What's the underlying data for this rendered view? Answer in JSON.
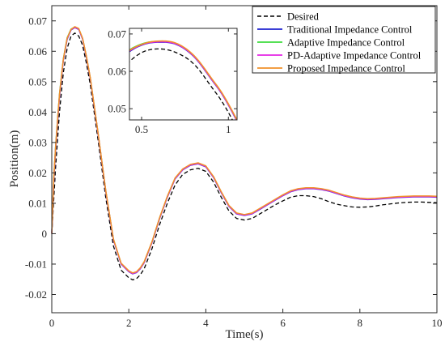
{
  "chart_data": {
    "type": "line",
    "xlabel": "Time(s)",
    "ylabel": "Position(m)",
    "xlim": [
      0,
      10
    ],
    "ylim": [
      -0.026,
      0.075
    ],
    "xticks": [
      "0",
      "2",
      "4",
      "6",
      "8",
      "10"
    ],
    "yticks": [
      "-0.02",
      "-0.01",
      "0",
      "0.01",
      "0.02",
      "0.03",
      "0.04",
      "0.05",
      "0.06",
      "0.07"
    ],
    "grid": false,
    "legend_position": "top-right",
    "series": [
      {
        "name": "Desired",
        "color": "#000000",
        "style": "dashed",
        "x": [
          0,
          0.1,
          0.2,
          0.3,
          0.4,
          0.5,
          0.6,
          0.7,
          0.8,
          0.9,
          1.0,
          1.2,
          1.4,
          1.6,
          1.8,
          2.0,
          2.1,
          2.2,
          2.3,
          2.4,
          2.6,
          2.8,
          3.0,
          3.2,
          3.4,
          3.6,
          3.8,
          4.0,
          4.2,
          4.4,
          4.6,
          4.8,
          5.0,
          5.2,
          5.4,
          5.6,
          5.8,
          6.0,
          6.2,
          6.4,
          6.6,
          6.8,
          7.0,
          7.2,
          7.4,
          7.6,
          7.8,
          8.0,
          8.2,
          8.4,
          8.6,
          8.8,
          9.0,
          9.2,
          9.4,
          9.6,
          9.8,
          10.0
        ],
        "y": [
          0.0,
          0.022,
          0.04,
          0.053,
          0.061,
          0.065,
          0.066,
          0.065,
          0.062,
          0.056,
          0.049,
          0.031,
          0.012,
          -0.004,
          -0.012,
          -0.0145,
          -0.0152,
          -0.0148,
          -0.0135,
          -0.0115,
          -0.005,
          0.003,
          0.01,
          0.016,
          0.0195,
          0.021,
          0.0215,
          0.0205,
          0.017,
          0.012,
          0.0075,
          0.005,
          0.0045,
          0.005,
          0.0065,
          0.008,
          0.0095,
          0.0108,
          0.012,
          0.0125,
          0.0125,
          0.0122,
          0.0115,
          0.0105,
          0.0097,
          0.0092,
          0.0088,
          0.0087,
          0.0088,
          0.0091,
          0.0095,
          0.0098,
          0.0101,
          0.0103,
          0.0104,
          0.0104,
          0.0103,
          0.0102
        ]
      },
      {
        "name": "Traditional Impedance Control",
        "color": "#1f23d1",
        "style": "solid",
        "x": [
          0,
          0.05,
          0.1,
          0.2,
          0.3,
          0.4,
          0.5,
          0.6,
          0.7,
          0.8,
          0.9,
          1.0,
          1.2,
          1.4,
          1.6,
          1.8,
          2.0,
          2.1,
          2.2,
          2.3,
          2.4,
          2.6,
          2.8,
          3.0,
          3.2,
          3.4,
          3.6,
          3.8,
          4.0,
          4.2,
          4.4,
          4.6,
          4.8,
          5.0,
          5.2,
          5.4,
          5.6,
          5.8,
          6.0,
          6.2,
          6.4,
          6.6,
          6.8,
          7.0,
          7.2,
          7.4,
          7.6,
          7.8,
          8.0,
          8.2,
          8.4,
          8.6,
          8.8,
          9.0,
          9.2,
          9.4,
          9.6,
          9.8,
          10.0
        ],
        "y": [
          0.0,
          0.017,
          0.028,
          0.045,
          0.057,
          0.064,
          0.067,
          0.0678,
          0.0672,
          0.064,
          0.058,
          0.051,
          0.033,
          0.014,
          -0.002,
          -0.01,
          -0.0125,
          -0.0132,
          -0.0128,
          -0.0115,
          -0.0095,
          -0.003,
          0.005,
          0.012,
          0.018,
          0.021,
          0.0225,
          0.023,
          0.022,
          0.0185,
          0.0135,
          0.009,
          0.0065,
          0.006,
          0.0065,
          0.008,
          0.0095,
          0.011,
          0.0125,
          0.0138,
          0.0145,
          0.0148,
          0.0148,
          0.0145,
          0.014,
          0.0132,
          0.0124,
          0.0118,
          0.0114,
          0.0112,
          0.0113,
          0.0115,
          0.0117,
          0.0119,
          0.012,
          0.0121,
          0.0121,
          0.0121,
          0.012
        ]
      },
      {
        "name": "Adaptive Impedance Control",
        "color": "#3ddc3d",
        "style": "solid",
        "x": [
          0,
          0.05,
          0.1,
          0.2,
          0.3,
          0.4,
          0.5,
          0.6,
          0.7,
          0.8,
          0.9,
          1.0,
          1.2,
          1.4,
          1.6,
          1.8,
          2.0,
          2.1,
          2.2,
          2.3,
          2.4,
          2.6,
          2.8,
          3.0,
          3.2,
          3.4,
          3.6,
          3.8,
          4.0,
          4.2,
          4.4,
          4.6,
          4.8,
          5.0,
          5.2,
          5.4,
          5.6,
          5.8,
          6.0,
          6.2,
          6.4,
          6.6,
          6.8,
          7.0,
          7.2,
          7.4,
          7.6,
          7.8,
          8.0,
          8.2,
          8.4,
          8.6,
          8.8,
          9.0,
          9.2,
          9.4,
          9.6,
          9.8,
          10.0
        ],
        "y": [
          0.0,
          0.018,
          0.029,
          0.046,
          0.0575,
          0.0645,
          0.0673,
          0.068,
          0.0674,
          0.0642,
          0.0582,
          0.0512,
          0.0332,
          0.0142,
          -0.0018,
          -0.0098,
          -0.0123,
          -0.013,
          -0.0126,
          -0.0113,
          -0.0093,
          -0.0028,
          0.0052,
          0.0122,
          0.0182,
          0.0212,
          0.0227,
          0.0232,
          0.0222,
          0.0187,
          0.0137,
          0.0092,
          0.0067,
          0.0062,
          0.0067,
          0.0082,
          0.0097,
          0.0112,
          0.0127,
          0.014,
          0.0147,
          0.015,
          0.015,
          0.0147,
          0.0142,
          0.0134,
          0.0126,
          0.012,
          0.0116,
          0.0114,
          0.0115,
          0.0117,
          0.0119,
          0.0121,
          0.0122,
          0.0123,
          0.0123,
          0.0123,
          0.0122
        ]
      },
      {
        "name": "PD-Adaptive Impedance Control",
        "color": "#e524e5",
        "style": "solid",
        "x": [
          0,
          0.05,
          0.1,
          0.2,
          0.3,
          0.4,
          0.5,
          0.6,
          0.7,
          0.8,
          0.9,
          1.0,
          1.2,
          1.4,
          1.6,
          1.8,
          2.0,
          2.1,
          2.2,
          2.3,
          2.4,
          2.6,
          2.8,
          3.0,
          3.2,
          3.4,
          3.6,
          3.8,
          4.0,
          4.2,
          4.4,
          4.6,
          4.8,
          5.0,
          5.2,
          5.4,
          5.6,
          5.8,
          6.0,
          6.2,
          6.4,
          6.6,
          6.8,
          7.0,
          7.2,
          7.4,
          7.6,
          7.8,
          8.0,
          8.2,
          8.4,
          8.6,
          8.8,
          9.0,
          9.2,
          9.4,
          9.6,
          9.8,
          10.0
        ],
        "y": [
          0.0,
          0.0175,
          0.0285,
          0.0455,
          0.0572,
          0.0642,
          0.0671,
          0.0679,
          0.0673,
          0.0641,
          0.0581,
          0.0511,
          0.0331,
          0.0141,
          -0.0019,
          -0.0099,
          -0.0124,
          -0.0131,
          -0.0127,
          -0.0114,
          -0.0094,
          -0.0029,
          0.0051,
          0.0121,
          0.0181,
          0.0211,
          0.0226,
          0.0231,
          0.0221,
          0.0186,
          0.0136,
          0.0091,
          0.0066,
          0.0061,
          0.0066,
          0.0081,
          0.0096,
          0.0111,
          0.0126,
          0.0139,
          0.0146,
          0.0149,
          0.0149,
          0.0146,
          0.0141,
          0.0133,
          0.0125,
          0.0119,
          0.0115,
          0.0113,
          0.0114,
          0.0116,
          0.0118,
          0.012,
          0.0121,
          0.0122,
          0.0122,
          0.0122,
          0.0121
        ]
      },
      {
        "name": "Proposed Impedance Control",
        "color": "#f0912a",
        "style": "solid",
        "x": [
          0,
          0.05,
          0.1,
          0.2,
          0.3,
          0.4,
          0.5,
          0.6,
          0.7,
          0.8,
          0.9,
          1.0,
          1.2,
          1.4,
          1.6,
          1.8,
          2.0,
          2.1,
          2.2,
          2.3,
          2.4,
          2.6,
          2.8,
          3.0,
          3.2,
          3.4,
          3.6,
          3.8,
          4.0,
          4.2,
          4.4,
          4.6,
          4.8,
          5.0,
          5.2,
          5.4,
          5.6,
          5.8,
          6.0,
          6.2,
          6.4,
          6.6,
          6.8,
          7.0,
          7.2,
          7.4,
          7.6,
          7.8,
          8.0,
          8.2,
          8.4,
          8.6,
          8.8,
          9.0,
          9.2,
          9.4,
          9.6,
          9.8,
          10.0
        ],
        "y": [
          0.0,
          0.0178,
          0.0288,
          0.0458,
          0.0574,
          0.0644,
          0.0672,
          0.0681,
          0.0675,
          0.0643,
          0.0583,
          0.0513,
          0.0333,
          0.0143,
          -0.0017,
          -0.0097,
          -0.0122,
          -0.0129,
          -0.0125,
          -0.0112,
          -0.0092,
          -0.0027,
          0.0053,
          0.0123,
          0.0183,
          0.0213,
          0.0228,
          0.0233,
          0.0223,
          0.0188,
          0.0138,
          0.0093,
          0.0068,
          0.0063,
          0.0068,
          0.0083,
          0.0098,
          0.0113,
          0.0128,
          0.0141,
          0.0148,
          0.0151,
          0.0151,
          0.0148,
          0.0143,
          0.0135,
          0.0127,
          0.0121,
          0.0117,
          0.0115,
          0.0116,
          0.0118,
          0.012,
          0.0122,
          0.0123,
          0.0124,
          0.0124,
          0.0124,
          0.0123
        ]
      }
    ],
    "inset": {
      "xlim": [
        0.43,
        1.05
      ],
      "ylim": [
        0.047,
        0.0715
      ],
      "xticks": [
        "0.5",
        "1"
      ],
      "yticks": [
        "0.05",
        "0.06",
        "0.07"
      ]
    }
  }
}
